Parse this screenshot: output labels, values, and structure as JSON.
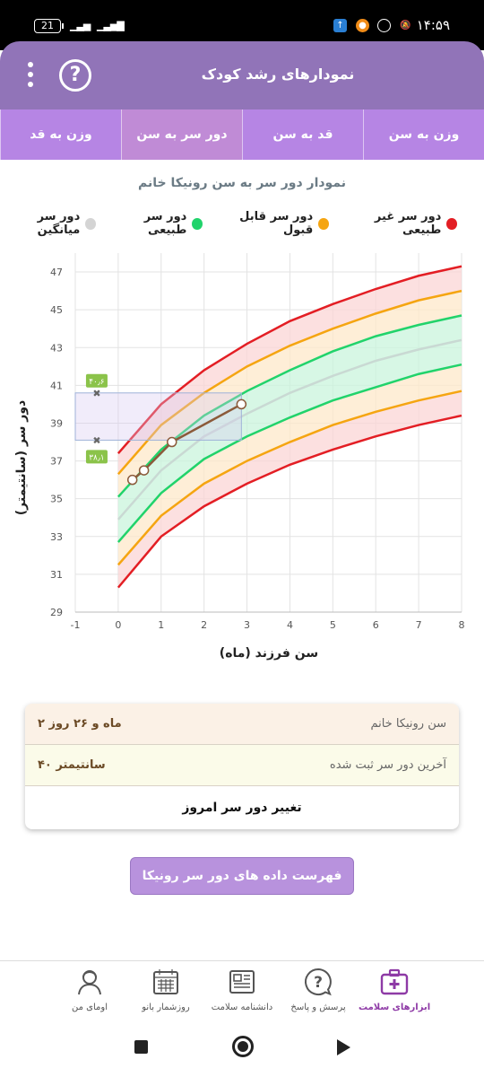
{
  "status": {
    "time": "۱۴:۵۹",
    "battery": "21",
    "signal1": "▁▃▅",
    "signal2": "▁▃▅▇"
  },
  "header": {
    "title": "نمودارهای رشد کودک",
    "help": "?"
  },
  "tabs": [
    {
      "label": "وزن به سن",
      "active": false
    },
    {
      "label": "قد به سن",
      "active": false
    },
    {
      "label": "دور سر به سن",
      "active": true
    },
    {
      "label": "وزن به قد",
      "active": false
    }
  ],
  "chart_title": "نمودار دور سر به سن رونیکا خانم",
  "legend": [
    {
      "label": "دور سر غیر طبیعی",
      "color": "#e31e24"
    },
    {
      "label": "دور سر قابل قبول",
      "color": "#f5a511"
    },
    {
      "label": "دور سر طبیعی",
      "color": "#21d36b"
    },
    {
      "label": "دور سر میانگین",
      "color": "#d4d4d4"
    }
  ],
  "chart_data": {
    "type": "line",
    "xlabel": "سن فرزند (ماه)",
    "ylabel": "دور سر (سانتیمتر)",
    "xlim": [
      -1,
      8
    ],
    "ylim": [
      29,
      48
    ],
    "x_ticks": [
      -1,
      0,
      1,
      2,
      3,
      4,
      5,
      6,
      7,
      8
    ],
    "y_ticks": [
      29,
      31,
      33,
      35,
      37,
      39,
      41,
      43,
      45,
      47
    ],
    "x": [
      0,
      1,
      2,
      3,
      4,
      5,
      6,
      7,
      8
    ],
    "series": [
      {
        "name": "دور سر غیر طبیعی",
        "color": "#e31e24",
        "values": [
          37.4,
          40.0,
          41.8,
          43.2,
          44.4,
          45.3,
          46.1,
          46.8,
          47.3
        ]
      },
      {
        "name": "دور سر قابل قبول",
        "color": "#f5a511",
        "values": [
          36.3,
          38.9,
          40.6,
          42.0,
          43.1,
          44.0,
          44.8,
          45.5,
          46.0
        ]
      },
      {
        "name": "دور سر طبیعی",
        "color": "#21d36b",
        "values": [
          35.1,
          37.6,
          39.4,
          40.7,
          41.8,
          42.8,
          43.6,
          44.2,
          44.7
        ]
      },
      {
        "name": "دور سر میانگین",
        "color": "#c9d9d3",
        "values": [
          33.9,
          36.5,
          38.3,
          39.5,
          40.6,
          41.5,
          42.3,
          42.9,
          43.4
        ]
      },
      {
        "name": "دور سر طبیعی",
        "color": "#21d36b",
        "values": [
          32.7,
          35.3,
          37.1,
          38.3,
          39.3,
          40.2,
          40.9,
          41.6,
          42.1
        ]
      },
      {
        "name": "دور سر قابل قبول",
        "color": "#f5a511",
        "values": [
          31.5,
          34.1,
          35.8,
          37.0,
          38.0,
          38.9,
          39.6,
          40.2,
          40.7
        ]
      },
      {
        "name": "دور سر غیر طبیعی",
        "color": "#e31e24",
        "values": [
          30.3,
          33.0,
          34.6,
          35.8,
          36.8,
          37.6,
          38.3,
          38.9,
          39.4
        ]
      }
    ],
    "child": {
      "color": "#8b5a3a",
      "x": [
        0.33,
        0.6,
        1.25,
        2.87
      ],
      "y": [
        36.0,
        36.5,
        38.0,
        40.0
      ]
    },
    "range_box": {
      "x_from": -1,
      "x_to": 2.87,
      "y_low": 38.1,
      "y_high": 40.6,
      "low_label": "۳۸٫۱",
      "high_label": "۴۰٫۶",
      "marker_x": -0.5
    }
  },
  "info": {
    "age_label": "سن رونیکا خانم",
    "age_value": "۲ ماه و ۲۶ روز",
    "last_label": "آخرین دور سر ثبت شده",
    "last_value": "۴۰ سانتیمتر",
    "action": "تغییر دور سر امروز"
  },
  "list_button": "فهرست داده های دور سر رونیکا خانم",
  "bottom_nav": [
    {
      "label": "ابزارهای سلامت",
      "icon": "medical-kit-icon",
      "active": true
    },
    {
      "label": "پرسش و پاسخ",
      "icon": "question-bubble-icon",
      "active": false
    },
    {
      "label": "دانشنامه سلامت",
      "icon": "newspaper-icon",
      "active": false
    },
    {
      "label": "روزشمار بانو",
      "icon": "calendar-icon",
      "active": false
    },
    {
      "label": "اومای من",
      "icon": "profile-avatar-icon",
      "active": false
    }
  ]
}
